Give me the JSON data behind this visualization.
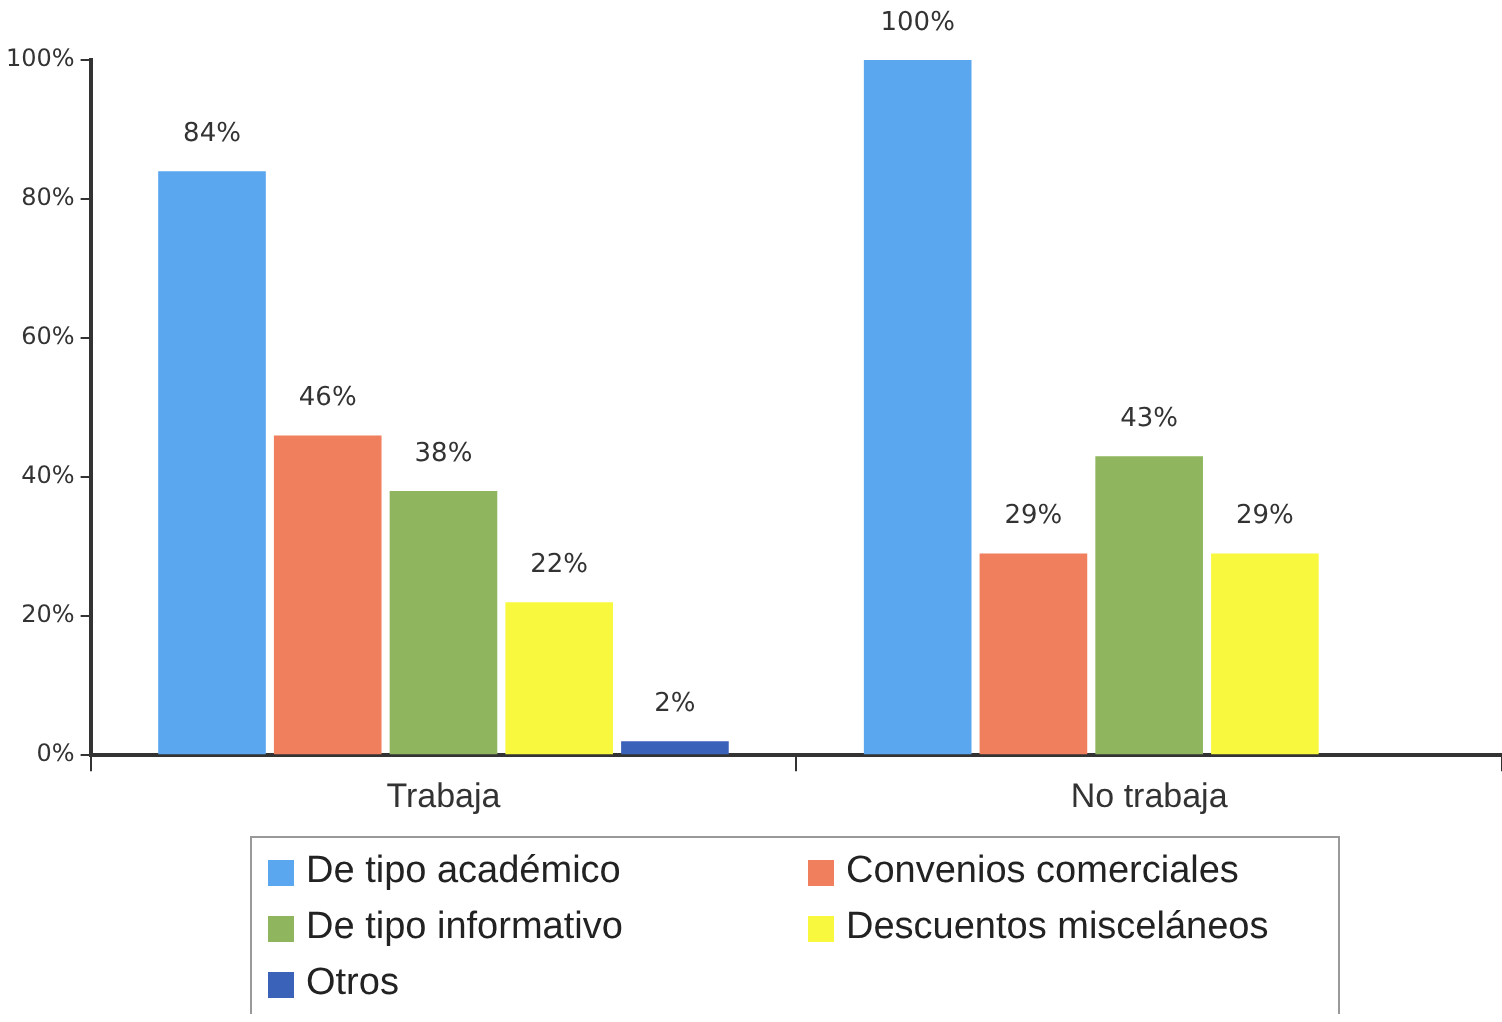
{
  "chart_data": {
    "type": "bar",
    "categories": [
      "Trabaja",
      "No trabaja"
    ],
    "series": [
      {
        "name": "De tipo académico",
        "color": "#5aa7f0",
        "values": [
          84,
          100
        ],
        "value_labels": [
          "84%",
          "100%"
        ]
      },
      {
        "name": "Convenios comerciales",
        "color": "#f07f5e",
        "values": [
          46,
          29
        ],
        "value_labels": [
          "46%",
          "29%"
        ]
      },
      {
        "name": "De tipo informativo",
        "color": "#8fb65e",
        "values": [
          38,
          43
        ],
        "value_labels": [
          "38%",
          "43%"
        ]
      },
      {
        "name": "Descuentos misceláneos",
        "color": "#f8f83e",
        "values": [
          22,
          29
        ],
        "value_labels": [
          "22%",
          "29%"
        ]
      },
      {
        "name": "Otros",
        "color": "#3a62b8",
        "values": [
          2,
          null
        ],
        "value_labels": [
          "2%",
          null
        ]
      }
    ],
    "ylim": [
      0,
      100
    ],
    "yticks": [
      {
        "value": 0,
        "label": "0%"
      },
      {
        "value": 20,
        "label": "20%"
      },
      {
        "value": 40,
        "label": "40%"
      },
      {
        "value": 60,
        "label": "60%"
      },
      {
        "value": 80,
        "label": "80%"
      },
      {
        "value": 100,
        "label": "100%"
      }
    ],
    "grid": false,
    "legend": "bottom"
  }
}
